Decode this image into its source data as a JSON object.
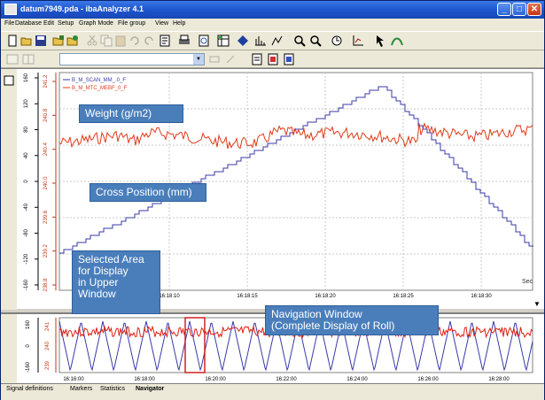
{
  "window": {
    "title": "datum7949.pda - ibaAnalyzer 4.1"
  },
  "menu": [
    "File",
    "Database",
    "Edit",
    "Setup",
    "Graph Mode",
    "File group",
    "View",
    "Help"
  ],
  "toolbar": {
    "icons": [
      "new-icon",
      "open-icon",
      "save-icon",
      "open-group-icon",
      "open-recent-icon",
      "cut-icon",
      "copy-icon",
      "paste-icon",
      "undo-icon",
      "redo-icon",
      "report-icon",
      "print-icon",
      "print-preview-icon",
      "signal-table-icon",
      "marker-icon",
      "fft-icon",
      "xy-icon",
      "zoom-icon",
      "zoom-x-icon",
      "time-icon",
      "axis-icon",
      "arrow-icon",
      "trend-icon"
    ]
  },
  "upper_plot": {
    "legend": [
      "B_M_SCAN_MM_.0_F",
      "B_M_MTC_MEBF_0_F"
    ],
    "x_ticks": [
      "16:18:10",
      "16:18:15",
      "16:18:20",
      "16:18:25",
      "16:18:30"
    ],
    "x_unit": "Sec",
    "axis1_ticks": [
      "160",
      "120",
      "80",
      "40",
      "0",
      "-40",
      "-80",
      "-120",
      "-160"
    ],
    "axis2_ticks": [
      "241.2",
      "240.8",
      "240.4",
      "240.0",
      "239.6",
      "239.2",
      "238.8"
    ],
    "colors": {
      "cross": "#3a3aa8",
      "weight": "#e03a1a"
    }
  },
  "nav_plot": {
    "x_ticks": [
      "16:16:00",
      "16:18:00",
      "16:20:00",
      "16:22:00",
      "16:24:00",
      "16:26:00",
      "16:28:00"
    ],
    "axis1_ticks": [
      "160",
      "0",
      "-160"
    ],
    "axis2_ticks": [
      "241",
      "240",
      "239"
    ]
  },
  "tabs": [
    "Signal definitions",
    "Markers",
    "Statistics",
    "Navigator"
  ],
  "callouts": {
    "weight": "Weight (g/m2)",
    "cross": "Cross Position (mm)",
    "selected": [
      "Selected Area",
      "for Display",
      "in Upper",
      "Window"
    ],
    "navigation": [
      "Navigation Window",
      "(Complete Display of Roll)"
    ]
  }
}
